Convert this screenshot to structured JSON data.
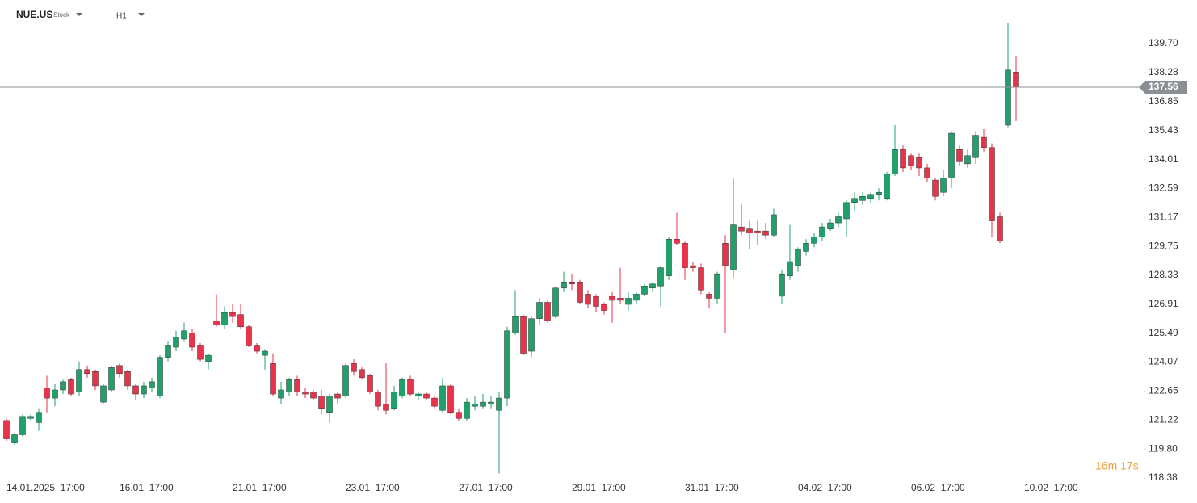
{
  "header": {
    "symbol": "NUE.US",
    "kind": "Stock",
    "interval": "H1"
  },
  "chart_data": {
    "type": "candlestick",
    "categories": [
      "14.01.2025  17:00",
      null,
      null,
      null,
      null,
      null,
      null,
      null,
      null,
      null,
      null,
      null,
      null,
      null,
      "16.01  17:00",
      null,
      null,
      null,
      null,
      null,
      null,
      null,
      null,
      null,
      null,
      null,
      null,
      null,
      "21.01  17:00",
      null,
      null,
      null,
      null,
      null,
      null,
      null,
      null,
      null,
      null,
      null,
      null,
      null,
      "23.01  17:00",
      null,
      null,
      null,
      null,
      null,
      null,
      null,
      null,
      null,
      null,
      null,
      null,
      null,
      "27.01  17:00",
      null,
      null,
      null,
      null,
      null,
      null,
      null,
      null,
      null,
      null,
      null,
      null,
      null,
      "29.01  17:00",
      null,
      null,
      null,
      null,
      null,
      null,
      null,
      null,
      null,
      null,
      null,
      null,
      null,
      "31.01  17:00",
      null,
      null,
      null,
      null,
      null,
      null,
      null,
      null,
      null,
      null,
      null,
      null,
      null,
      "04.02  17:00",
      null,
      null,
      null,
      null,
      null,
      null,
      null,
      null,
      null,
      null,
      null,
      null,
      null,
      "06.02  17:00",
      null,
      null,
      null,
      null,
      null,
      null,
      null,
      null,
      null,
      null,
      null,
      null,
      null,
      "10.02  17:00"
    ],
    "ohlc": [
      [
        121.2,
        121.3,
        120.2,
        120.3
      ],
      [
        120.1,
        120.6,
        120.0,
        120.5
      ],
      [
        120.5,
        121.5,
        120.4,
        121.4
      ],
      [
        121.3,
        121.5,
        121.2,
        121.4
      ],
      [
        121.1,
        121.8,
        120.7,
        121.6
      ],
      [
        122.8,
        123.4,
        121.6,
        122.3
      ],
      [
        122.3,
        123.0,
        121.9,
        122.7
      ],
      [
        122.7,
        123.2,
        122.5,
        123.1
      ],
      [
        123.2,
        123.3,
        122.4,
        122.5
      ],
      [
        122.6,
        124.1,
        122.4,
        123.7
      ],
      [
        123.7,
        123.9,
        123.3,
        123.5
      ],
      [
        123.6,
        123.7,
        122.7,
        122.9
      ],
      [
        122.1,
        123.0,
        122.0,
        122.9
      ],
      [
        122.7,
        123.9,
        122.6,
        123.8
      ],
      [
        123.9,
        124.0,
        123.3,
        123.5
      ],
      [
        123.6,
        123.7,
        122.7,
        122.9
      ],
      [
        122.9,
        123.0,
        122.2,
        122.5
      ],
      [
        122.5,
        123.1,
        122.3,
        122.9
      ],
      [
        122.8,
        123.3,
        122.6,
        123.1
      ],
      [
        122.4,
        124.4,
        122.3,
        124.3
      ],
      [
        124.3,
        125.1,
        124.1,
        124.9
      ],
      [
        124.8,
        125.6,
        124.6,
        125.3
      ],
      [
        125.2,
        126.0,
        125.1,
        125.6
      ],
      [
        125.5,
        125.7,
        124.6,
        124.8
      ],
      [
        124.9,
        125.0,
        124.1,
        124.2
      ],
      [
        124.1,
        124.5,
        123.7,
        124.4
      ],
      [
        126.1,
        127.4,
        125.8,
        125.9
      ],
      [
        125.9,
        126.8,
        125.7,
        126.5
      ],
      [
        126.5,
        126.9,
        126.0,
        126.3
      ],
      [
        126.4,
        126.9,
        125.7,
        125.8
      ],
      [
        125.8,
        125.9,
        124.8,
        124.9
      ],
      [
        124.9,
        125.0,
        124.5,
        124.6
      ],
      [
        124.4,
        124.7,
        123.7,
        124.6
      ],
      [
        124.0,
        124.5,
        122.4,
        122.5
      ],
      [
        122.3,
        123.1,
        122.0,
        122.7
      ],
      [
        122.6,
        123.3,
        122.4,
        123.2
      ],
      [
        123.2,
        123.4,
        122.4,
        122.6
      ],
      [
        122.6,
        122.8,
        122.3,
        122.5
      ],
      [
        122.6,
        122.7,
        122.2,
        122.3
      ],
      [
        122.4,
        122.7,
        121.5,
        121.8
      ],
      [
        121.6,
        122.5,
        121.1,
        122.4
      ],
      [
        122.5,
        122.6,
        122.0,
        122.3
      ],
      [
        122.4,
        124.0,
        122.3,
        123.9
      ],
      [
        124.0,
        124.2,
        123.4,
        123.6
      ],
      [
        123.7,
        123.8,
        123.2,
        123.3
      ],
      [
        123.4,
        123.5,
        122.5,
        122.6
      ],
      [
        122.6,
        122.7,
        121.7,
        121.9
      ],
      [
        122.0,
        124.0,
        121.5,
        121.7
      ],
      [
        121.8,
        122.9,
        121.7,
        122.6
      ],
      [
        122.4,
        123.3,
        122.3,
        123.2
      ],
      [
        123.2,
        123.4,
        122.4,
        122.5
      ],
      [
        122.4,
        122.6,
        122.2,
        122.5
      ],
      [
        122.5,
        122.6,
        122.2,
        122.3
      ],
      [
        122.3,
        122.4,
        121.8,
        121.9
      ],
      [
        121.7,
        123.3,
        121.6,
        122.9
      ],
      [
        122.9,
        123.0,
        121.5,
        121.6
      ],
      [
        121.6,
        121.8,
        121.2,
        121.3
      ],
      [
        121.3,
        122.3,
        121.2,
        122.1
      ],
      [
        121.9,
        122.4,
        121.7,
        122.0
      ],
      [
        121.9,
        122.5,
        121.8,
        122.1
      ],
      [
        122.0,
        122.4,
        121.8,
        122.1
      ],
      [
        121.7,
        122.6,
        118.6,
        122.3
      ],
      [
        122.3,
        125.8,
        121.9,
        125.6
      ],
      [
        125.5,
        127.6,
        125.4,
        126.3
      ],
      [
        126.3,
        126.4,
        124.4,
        124.5
      ],
      [
        124.6,
        126.3,
        124.3,
        126.2
      ],
      [
        126.2,
        127.2,
        125.9,
        127.0
      ],
      [
        127.0,
        127.1,
        126.0,
        126.1
      ],
      [
        126.3,
        127.8,
        126.2,
        127.7
      ],
      [
        127.7,
        128.5,
        127.5,
        128.0
      ],
      [
        128.0,
        128.4,
        127.6,
        127.9
      ],
      [
        128.0,
        128.1,
        126.9,
        127.0
      ],
      [
        127.4,
        127.6,
        126.7,
        126.9
      ],
      [
        127.3,
        127.4,
        126.5,
        126.8
      ],
      [
        126.9,
        127.0,
        126.4,
        126.6
      ],
      [
        127.3,
        127.5,
        126.0,
        127.1
      ],
      [
        127.2,
        128.7,
        126.9,
        127.1
      ],
      [
        126.9,
        127.5,
        126.6,
        127.2
      ],
      [
        127.1,
        127.5,
        126.9,
        127.4
      ],
      [
        127.4,
        127.9,
        127.3,
        127.8
      ],
      [
        127.7,
        128.0,
        127.5,
        127.9
      ],
      [
        127.8,
        128.8,
        126.8,
        128.7
      ],
      [
        128.3,
        130.2,
        128.1,
        130.1
      ],
      [
        130.1,
        131.4,
        129.8,
        129.9
      ],
      [
        129.9,
        130.0,
        128.1,
        128.7
      ],
      [
        128.8,
        129.0,
        128.5,
        128.7
      ],
      [
        128.7,
        128.9,
        127.4,
        127.6
      ],
      [
        127.4,
        127.5,
        126.7,
        127.2
      ],
      [
        127.2,
        128.5,
        126.9,
        128.4
      ],
      [
        129.9,
        130.3,
        125.5,
        128.8
      ],
      [
        128.6,
        133.1,
        128.2,
        130.8
      ],
      [
        130.7,
        131.8,
        130.3,
        130.5
      ],
      [
        130.6,
        131.0,
        129.6,
        130.4
      ],
      [
        130.5,
        131.0,
        129.8,
        130.4
      ],
      [
        130.5,
        130.9,
        130.1,
        130.3
      ],
      [
        130.3,
        131.6,
        130.2,
        131.3
      ],
      [
        127.3,
        128.6,
        126.9,
        128.4
      ],
      [
        128.3,
        130.8,
        128.1,
        129.0
      ],
      [
        128.8,
        129.7,
        128.5,
        129.6
      ],
      [
        129.5,
        130.1,
        129.3,
        129.9
      ],
      [
        129.9,
        130.4,
        129.7,
        130.2
      ],
      [
        130.2,
        130.9,
        130.0,
        130.7
      ],
      [
        130.6,
        131.1,
        130.5,
        130.9
      ],
      [
        130.9,
        131.4,
        130.7,
        131.2
      ],
      [
        131.1,
        132.0,
        130.2,
        131.9
      ],
      [
        131.9,
        132.4,
        131.5,
        132.1
      ],
      [
        132.0,
        132.4,
        131.8,
        132.2
      ],
      [
        132.1,
        132.4,
        131.9,
        132.3
      ],
      [
        132.3,
        132.6,
        132.0,
        132.4
      ],
      [
        132.1,
        133.4,
        132.0,
        133.3
      ],
      [
        133.3,
        135.7,
        133.2,
        134.5
      ],
      [
        134.5,
        134.7,
        133.4,
        133.6
      ],
      [
        134.2,
        134.3,
        133.5,
        133.7
      ],
      [
        134.1,
        134.3,
        133.2,
        133.6
      ],
      [
        133.6,
        133.8,
        132.9,
        133.1
      ],
      [
        133.0,
        133.1,
        132.0,
        132.2
      ],
      [
        132.4,
        133.5,
        132.2,
        133.1
      ],
      [
        133.1,
        135.4,
        132.6,
        135.3
      ],
      [
        134.5,
        134.7,
        133.7,
        133.9
      ],
      [
        133.8,
        134.5,
        133.6,
        134.2
      ],
      [
        134.1,
        135.4,
        133.8,
        135.2
      ],
      [
        135.1,
        135.5,
        134.4,
        134.6
      ],
      [
        134.6,
        134.8,
        130.2,
        131.0
      ],
      [
        131.2,
        131.4,
        129.9,
        130.0
      ],
      [
        135.7,
        140.7,
        135.6,
        138.4
      ],
      [
        138.3,
        139.1,
        135.9,
        137.56
      ],
      null
    ],
    "up_color": "#22a06b",
    "down_color": "#e8334a",
    "ylim": [
      118.38,
      141.84
    ],
    "yticks": [
      118.38,
      {
        "value": 119.8,
        "label": "119.80"
      },
      121.22,
      122.65,
      124.07,
      125.49,
      126.91,
      128.33,
      129.75,
      131.17,
      132.59,
      134.01,
      135.43,
      136.85,
      138.28,
      {
        "value": 139.7,
        "label": "139.70"
      }
    ],
    "last_price": 137.56,
    "countdown": "16m 17s"
  }
}
